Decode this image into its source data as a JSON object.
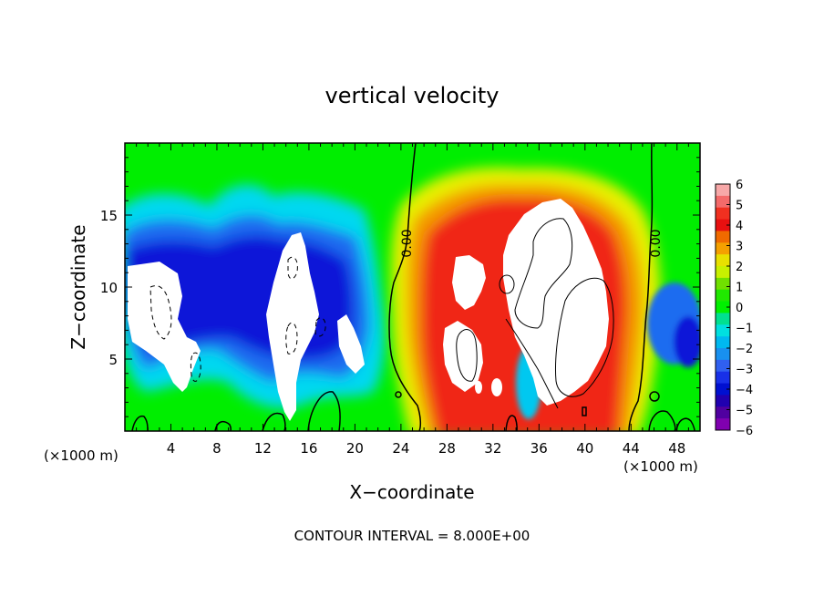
{
  "chart_data": {
    "type": "heatmap",
    "title": "vertical velocity",
    "xlabel": "X−coordinate",
    "ylabel": "Z−coordinate",
    "x_unit_left": "(×1000 m)",
    "x_unit_right": "(×1000 m)",
    "footer": "CONTOUR INTERVAL = 8.000E+00",
    "xlim": [
      0,
      50
    ],
    "ylim": [
      0,
      20
    ],
    "x_ticks": [
      4,
      8,
      12,
      16,
      20,
      24,
      28,
      32,
      36,
      40,
      44,
      48
    ],
    "y_ticks": [
      5,
      10,
      15
    ],
    "colorbar": {
      "min": -6,
      "max": 6,
      "labels": [
        "6",
        "5",
        "4",
        "3",
        "2",
        "1",
        "0",
        "−1",
        "−2",
        "−3",
        "−4",
        "−5",
        "−6"
      ],
      "colors": [
        "#f7a8a8",
        "#f46a6a",
        "#f03020",
        "#e81010",
        "#f06a00",
        "#f4a000",
        "#e8e000",
        "#c8f000",
        "#70e000",
        "#20e800",
        "#00f000",
        "#00e090",
        "#00e0e0",
        "#00b8f0",
        "#1890f0",
        "#3060f0",
        "#1830e8",
        "#0010d0",
        "#2000b0",
        "#5000a0",
        "#8000b0"
      ]
    },
    "contour_labels": [
      {
        "text": "0.00",
        "x": 24.0,
        "z": 13.0
      },
      {
        "text": "0.00",
        "x": 45.8,
        "z": 13.0
      }
    ]
  }
}
